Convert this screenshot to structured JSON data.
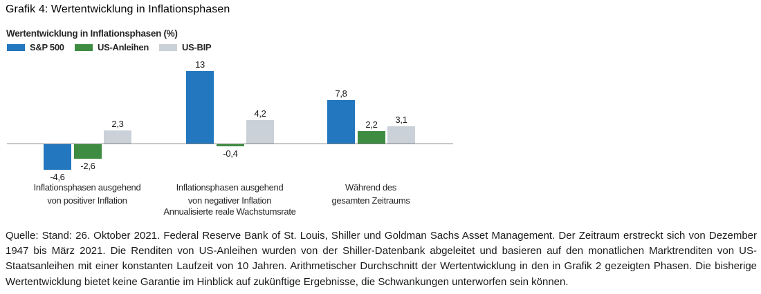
{
  "page": {
    "title": "Grafik 4: Wertentwicklung in Inflationsphasen",
    "source_note": "Quelle: Stand: 26. Oktober 2021. Federal Reserve Bank of St. Louis, Shiller und Goldman Sachs Asset Management. Der Zeitraum erstreckt sich von Dezember 1947 bis März 2021. Die Renditen von US-Anleihen wurden von der Shiller-Datenbank abgeleitet und basieren auf den monatlichen Marktrenditen von US-Staatsanleihen mit einer konstanten Laufzeit von 10 Jahren. Arithmetischer Durchschnitt der Wertentwicklung in den in Grafik 2 gezeigten Phasen. Die bisherige Wertentwicklung bietet keine Garantie im Hinblick auf zukünftige Ergebnisse, die Schwankungen unterworfen sein können."
  },
  "chart_data": {
    "type": "bar",
    "title": "Wertentwicklung in Inflationsphasen (%)",
    "categories": [
      "Inflationsphasen ausgehend\nvon positiver Inflation",
      "Inflationsphasen ausgehend\nvon negativer Inflation",
      "Während des\ngesamten Zeitraums"
    ],
    "series": [
      {
        "name": "S&P 500",
        "color": "#2277BE",
        "values": [
          -4.6,
          13,
          7.8
        ],
        "labels": [
          "-4,6",
          "13",
          "7,8"
        ]
      },
      {
        "name": "US-Anleihen",
        "color": "#3E8C41",
        "values": [
          -2.6,
          -0.4,
          2.2
        ],
        "labels": [
          "-2,6",
          "-0,4",
          "2,2"
        ]
      },
      {
        "name": "US-BIP",
        "color": "#CAD1D8",
        "values": [
          2.3,
          4.2,
          3.1
        ],
        "labels": [
          "2,3",
          "4,2",
          "3,1"
        ]
      }
    ],
    "xlabel": "Annualisierte reale Wachstumsrate",
    "ylabel": "",
    "ylim": [
      -6,
      14
    ],
    "baseline": 0,
    "grid": false,
    "legend_position": "top-left",
    "axis_color": "#7E7E7E"
  }
}
